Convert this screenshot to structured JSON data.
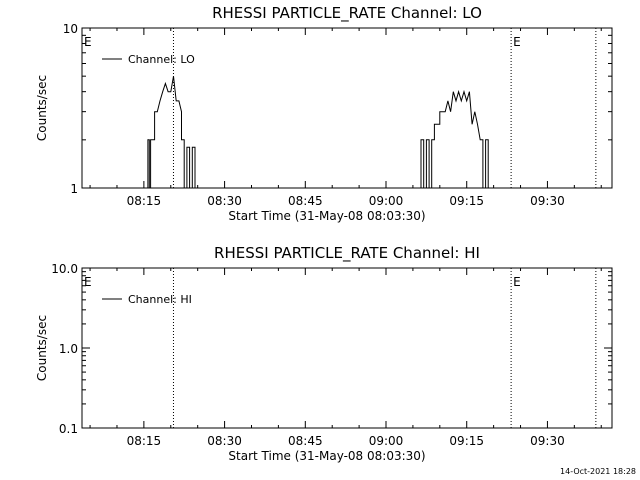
{
  "footer_timestamp": "14-Oct-2021 18:28",
  "chart_data": [
    {
      "type": "line",
      "title": "RHESSI PARTICLE_RATE Channel: LO",
      "xlabel": "Start Time (31-May-08 08:03:30)",
      "ylabel": "Counts/sec",
      "yscale": "log",
      "xlim": [
        "08:03:30",
        "09:42:00"
      ],
      "ylim": [
        1,
        10
      ],
      "x_tick_labels": [
        "08:15",
        "08:30",
        "08:45",
        "09:00",
        "09:15",
        "09:30"
      ],
      "y_tick_labels": [
        "1",
        "10"
      ],
      "legend": {
        "entries": [
          "Channel: LO"
        ],
        "location": "top-left"
      },
      "grid": false,
      "event_markers": [
        {
          "time": "08:03:30",
          "label": "E"
        },
        {
          "time": "09:23:15",
          "label": "E"
        }
      ],
      "vertical_dotted_lines": [
        "08:20:30",
        "09:23:15",
        "09:39:00"
      ],
      "series": [
        {
          "name": "Channel: LO",
          "points": [
            [
              "08:15:45",
              1
            ],
            [
              "08:15:45",
              2
            ],
            [
              "08:16:00",
              2
            ],
            [
              "08:16:00",
              1
            ],
            [
              "08:16:15",
              1
            ],
            [
              "08:16:15",
              2
            ],
            [
              "08:17:00",
              2
            ],
            [
              "08:17:00",
              3
            ],
            [
              "08:17:30",
              3
            ],
            [
              "08:18:00",
              3.5
            ],
            [
              "08:18:30",
              4
            ],
            [
              "08:19:00",
              4.5
            ],
            [
              "08:19:30",
              4
            ],
            [
              "08:20:00",
              4
            ],
            [
              "08:20:30",
              5
            ],
            [
              "08:21:00",
              3.5
            ],
            [
              "08:21:30",
              3.5
            ],
            [
              "08:22:00",
              3
            ],
            [
              "08:22:00",
              2
            ],
            [
              "08:22:30",
              2
            ],
            [
              "08:22:30",
              1
            ],
            [
              "08:23:00",
              1
            ],
            [
              "08:23:00",
              1.8
            ],
            [
              "08:23:30",
              1.8
            ],
            [
              "08:23:30",
              1
            ],
            [
              "08:24:00",
              1
            ],
            [
              "08:24:00",
              1.8
            ],
            [
              "08:24:30",
              1.8
            ],
            [
              "08:24:30",
              1
            ],
            [
              "09:06:30",
              1
            ],
            [
              "09:06:30",
              2
            ],
            [
              "09:07:00",
              2
            ],
            [
              "09:07:00",
              1
            ],
            [
              "09:07:30",
              1
            ],
            [
              "09:07:30",
              2
            ],
            [
              "09:08:00",
              2
            ],
            [
              "09:08:00",
              1
            ],
            [
              "09:08:30",
              1
            ],
            [
              "09:08:30",
              2
            ],
            [
              "09:09:00",
              2
            ],
            [
              "09:09:00",
              2.5
            ],
            [
              "09:10:00",
              2.5
            ],
            [
              "09:10:00",
              3
            ],
            [
              "09:11:00",
              3
            ],
            [
              "09:11:30",
              3.5
            ],
            [
              "09:12:00",
              3
            ],
            [
              "09:12:30",
              4
            ],
            [
              "09:13:00",
              3.5
            ],
            [
              "09:13:30",
              4
            ],
            [
              "09:14:00",
              3.5
            ],
            [
              "09:14:30",
              4
            ],
            [
              "09:15:00",
              3.5
            ],
            [
              "09:15:30",
              4
            ],
            [
              "09:16:00",
              2.5
            ],
            [
              "09:16:30",
              3
            ],
            [
              "09:17:00",
              2.5
            ],
            [
              "09:17:30",
              2
            ],
            [
              "09:18:00",
              2
            ],
            [
              "09:18:00",
              1
            ],
            [
              "09:18:30",
              1
            ],
            [
              "09:18:30",
              2
            ],
            [
              "09:19:00",
              2
            ],
            [
              "09:19:00",
              1
            ]
          ]
        }
      ]
    },
    {
      "type": "line",
      "title": "RHESSI PARTICLE_RATE Channel: HI",
      "xlabel": "Start Time (31-May-08 08:03:30)",
      "ylabel": "Counts/sec",
      "yscale": "log",
      "xlim": [
        "08:03:30",
        "09:42:00"
      ],
      "ylim": [
        0.1,
        10
      ],
      "x_tick_labels": [
        "08:15",
        "08:30",
        "08:45",
        "09:00",
        "09:15",
        "09:30"
      ],
      "y_tick_labels": [
        "0.1",
        "1.0",
        "10.0"
      ],
      "legend": {
        "entries": [
          "Channel: HI"
        ],
        "location": "top-left"
      },
      "grid": false,
      "event_markers": [
        {
          "time": "08:03:30",
          "label": "E"
        },
        {
          "time": "09:23:15",
          "label": "E"
        }
      ],
      "vertical_dotted_lines": [
        "08:20:30",
        "09:23:15",
        "09:39:00"
      ],
      "series": [
        {
          "name": "Channel: HI",
          "points": []
        }
      ]
    }
  ]
}
